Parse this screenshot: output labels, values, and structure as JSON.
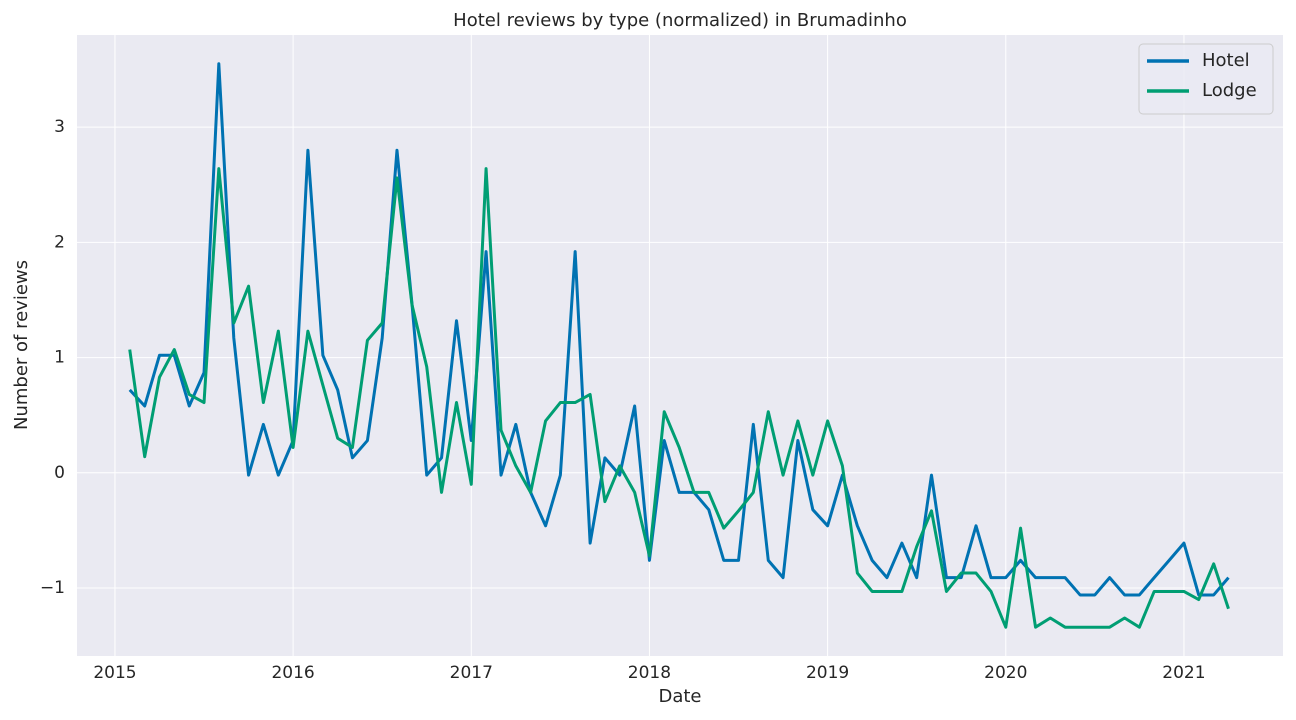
{
  "chart_data": {
    "type": "line",
    "title": "Hotel reviews by type (normalized) in Brumadinho",
    "xlabel": "Date",
    "ylabel": "Number of reviews",
    "x": [
      2015.083,
      2015.167,
      2015.25,
      2015.333,
      2015.417,
      2015.5,
      2015.583,
      2015.667,
      2015.75,
      2015.833,
      2015.917,
      2016,
      2016.083,
      2016.167,
      2016.25,
      2016.333,
      2016.417,
      2016.5,
      2016.583,
      2016.667,
      2016.75,
      2016.833,
      2016.917,
      2017,
      2017.083,
      2017.167,
      2017.25,
      2017.333,
      2017.417,
      2017.5,
      2017.583,
      2017.667,
      2017.75,
      2017.833,
      2017.917,
      2018,
      2018.083,
      2018.167,
      2018.25,
      2018.333,
      2018.417,
      2018.5,
      2018.583,
      2018.667,
      2018.75,
      2018.833,
      2018.917,
      2019,
      2019.083,
      2019.167,
      2019.25,
      2019.333,
      2019.417,
      2019.5,
      2019.583,
      2019.667,
      2019.75,
      2019.833,
      2019.917,
      2020,
      2020.083,
      2020.167,
      2020.25,
      2020.333,
      2020.417,
      2020.5,
      2020.583,
      2020.667,
      2020.75,
      2020.833,
      2020.917,
      2021,
      2021.083,
      2021.167,
      2021.25
    ],
    "series": [
      {
        "name": "Hotel",
        "color": "#0072b2",
        "values": [
          0.72,
          0.58,
          1.02,
          1.02,
          0.58,
          0.87,
          3.55,
          1.17,
          -0.02,
          0.42,
          -0.02,
          0.28,
          2.8,
          1.02,
          0.72,
          0.13,
          0.28,
          1.17,
          2.8,
          1.47,
          -0.02,
          0.13,
          1.32,
          0.28,
          1.92,
          -0.02,
          0.42,
          -0.17,
          -0.46,
          -0.02,
          1.92,
          -0.61,
          0.13,
          -0.02,
          0.58,
          -0.76,
          0.28,
          -0.17,
          -0.17,
          -0.32,
          -0.76,
          -0.76,
          0.42,
          -0.76,
          -0.91,
          0.28,
          -0.32,
          -0.46,
          -0.02,
          -0.46,
          -0.76,
          -0.91,
          -0.61,
          -0.91,
          -0.02,
          -0.91,
          -0.91,
          -0.46,
          -0.91,
          -0.91,
          -0.76,
          -0.91,
          -0.91,
          -0.91,
          -1.06,
          -1.06,
          -0.91,
          -1.06,
          -1.06,
          -0.91,
          -0.76,
          -0.61,
          -1.06,
          -1.06,
          -0.91
        ]
      },
      {
        "name": "Lodge",
        "color": "#009e73",
        "values": [
          1.07,
          0.14,
          0.83,
          1.07,
          0.68,
          0.61,
          2.64,
          1.3,
          1.62,
          0.61,
          1.23,
          0.22,
          1.23,
          0.76,
          0.3,
          0.22,
          1.15,
          1.3,
          2.56,
          1.46,
          0.92,
          -0.17,
          0.61,
          -0.1,
          2.64,
          0.37,
          0.06,
          -0.17,
          0.45,
          0.61,
          0.61,
          0.68,
          -0.25,
          0.06,
          -0.17,
          -0.72,
          0.53,
          0.22,
          -0.17,
          -0.17,
          -0.48,
          -0.33,
          -0.17,
          0.53,
          -0.02,
          0.45,
          -0.02,
          0.45,
          0.06,
          -0.87,
          -1.03,
          -1.03,
          -1.03,
          -0.64,
          -0.33,
          -1.03,
          -0.87,
          -0.87,
          -1.03,
          -1.34,
          -0.48,
          -1.34,
          -1.26,
          -1.34,
          -1.34,
          -1.34,
          -1.34,
          -1.26,
          -1.34,
          -1.03,
          -1.03,
          -1.03,
          -1.1,
          -0.79,
          -1.18
        ]
      }
    ],
    "xlim": [
      2014.787,
      2021.556
    ],
    "xticks": [
      2015,
      2016,
      2017,
      2018,
      2019,
      2020,
      2021
    ],
    "ylim": [
      -1.59,
      3.8
    ],
    "yticks": [
      {
        "value": -1,
        "label": "−1"
      },
      0,
      1,
      2,
      3
    ],
    "grid": true,
    "legend": "upper right"
  }
}
